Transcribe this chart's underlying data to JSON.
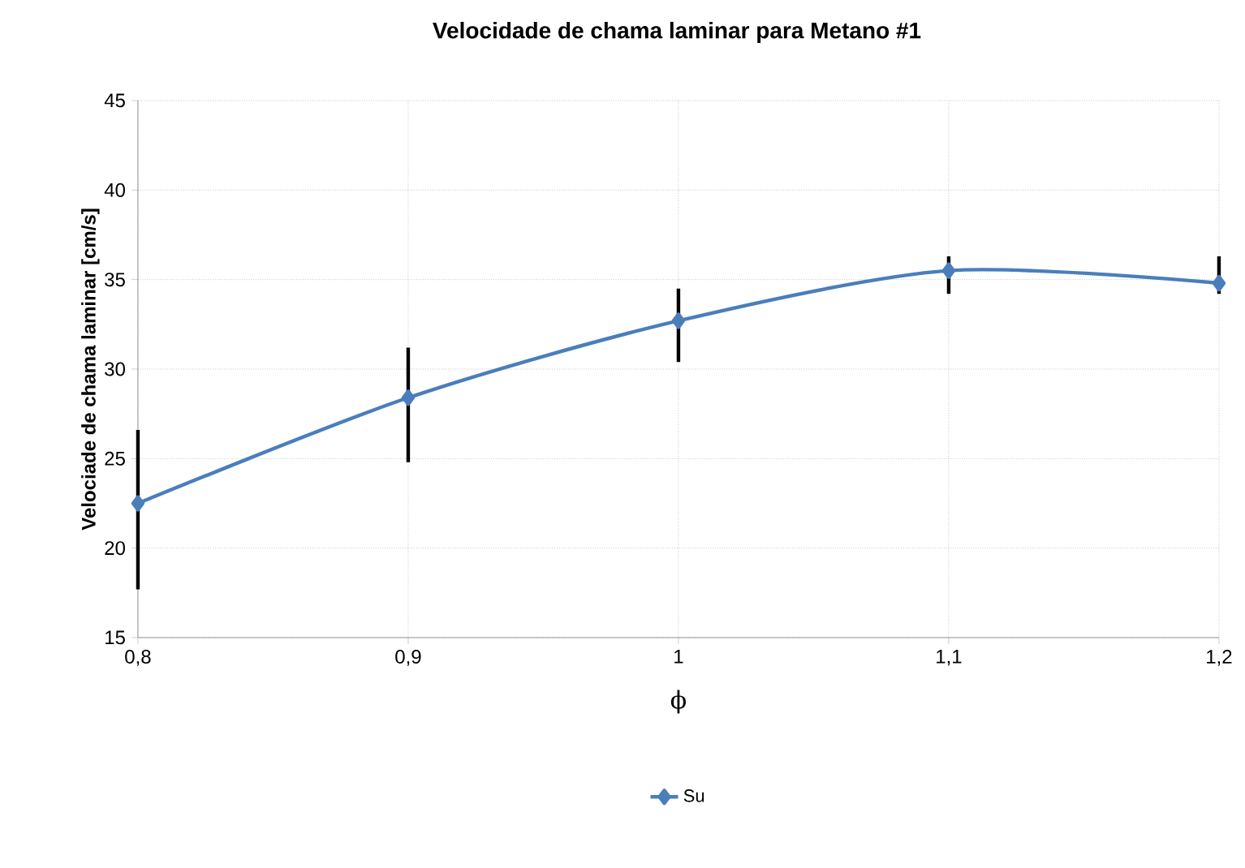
{
  "chart_data": {
    "type": "line",
    "title": "Velocidade de chama laminar para Metano #1",
    "xlabel": "ϕ",
    "ylabel": "Velociade de chama laminar  [cm/s]",
    "x": [
      0.8,
      0.9,
      1.0,
      1.1,
      1.2
    ],
    "series": [
      {
        "name": "Su",
        "color": "#4a7ebb",
        "values": [
          22.5,
          28.4,
          32.7,
          35.5,
          34.8
        ],
        "errors": [
          [
            17.7,
            26.6
          ],
          [
            24.8,
            31.2
          ],
          [
            30.4,
            34.5
          ],
          [
            34.2,
            36.3
          ],
          [
            34.2,
            36.3
          ]
        ]
      }
    ],
    "xlim": [
      0.8,
      1.2
    ],
    "xticks": [
      {
        "value": 0.8,
        "label": "0,8"
      },
      {
        "value": 0.9,
        "label": "0,9"
      },
      {
        "value": 1.0,
        "label": "1"
      },
      {
        "value": 1.1,
        "label": "1,1"
      },
      {
        "value": 1.2,
        "label": "1,2"
      }
    ],
    "ylim": [
      15,
      45
    ],
    "yticks": [
      15,
      20,
      25,
      30,
      35,
      40,
      45
    ],
    "grid": true,
    "legend": "bottom",
    "marker": "diamond",
    "line_style": "solid"
  }
}
